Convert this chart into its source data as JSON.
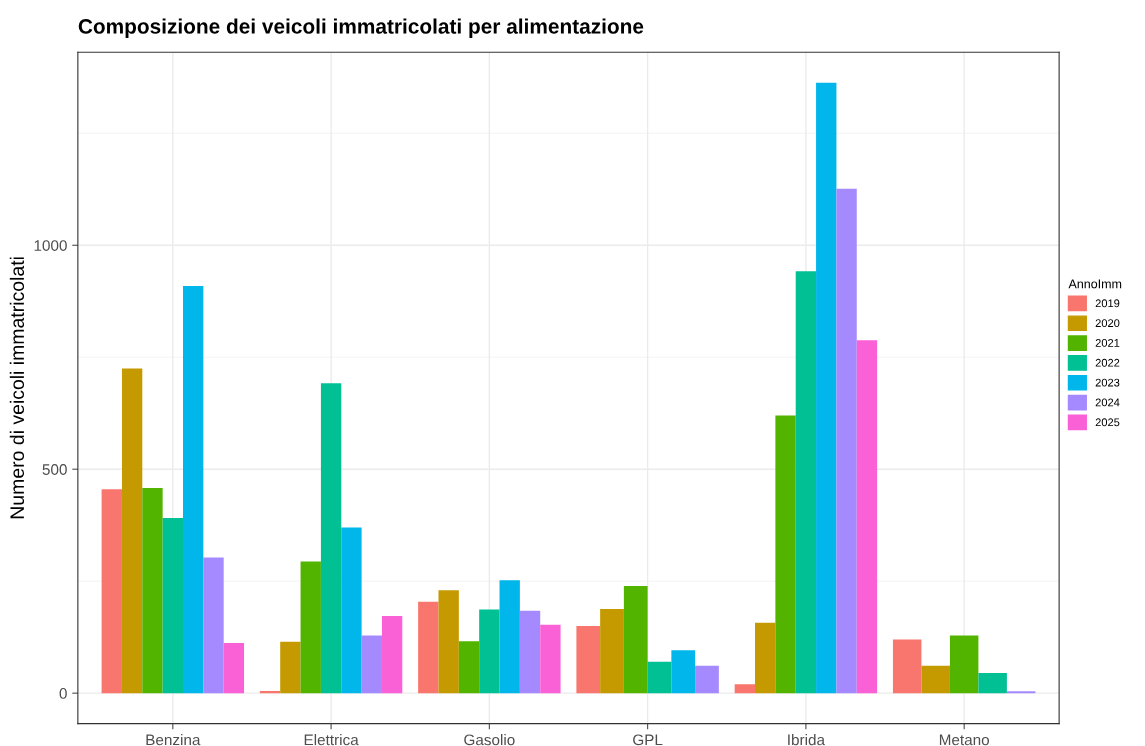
{
  "chart_data": {
    "type": "bar",
    "title": "Composizione dei veicoli immatricolati per alimentazione",
    "ylabel": "Numero di veicoli immatricolati",
    "legend_title": "AnnoImm",
    "categories": [
      "Benzina",
      "Elettrica",
      "Gasolio",
      "GPL",
      "Ibrida",
      "Metano"
    ],
    "series": [
      {
        "name": "2019",
        "color": "#f8766d",
        "values": [
          455,
          5,
          204,
          150,
          20,
          120
        ]
      },
      {
        "name": "2020",
        "color": "#c49a00",
        "values": [
          725,
          115,
          230,
          188,
          157,
          61
        ]
      },
      {
        "name": "2021",
        "color": "#53b400",
        "values": [
          458,
          294,
          116,
          239,
          620,
          129
        ]
      },
      {
        "name": "2022",
        "color": "#00c094",
        "values": [
          391,
          692,
          187,
          70,
          942,
          45
        ]
      },
      {
        "name": "2023",
        "color": "#00b6eb",
        "values": [
          909,
          370,
          252,
          96,
          1363,
          null
        ]
      },
      {
        "name": "2024",
        "color": "#a58aff",
        "values": [
          303,
          129,
          184,
          61,
          1126,
          4
        ]
      },
      {
        "name": "2025",
        "color": "#fb61d7",
        "values": [
          112,
          172,
          153,
          null,
          788,
          null
        ]
      }
    ],
    "ylim": [
      -68,
      1431
    ],
    "yticks": [
      0,
      500,
      1000
    ],
    "grid": true,
    "legend": "right"
  }
}
